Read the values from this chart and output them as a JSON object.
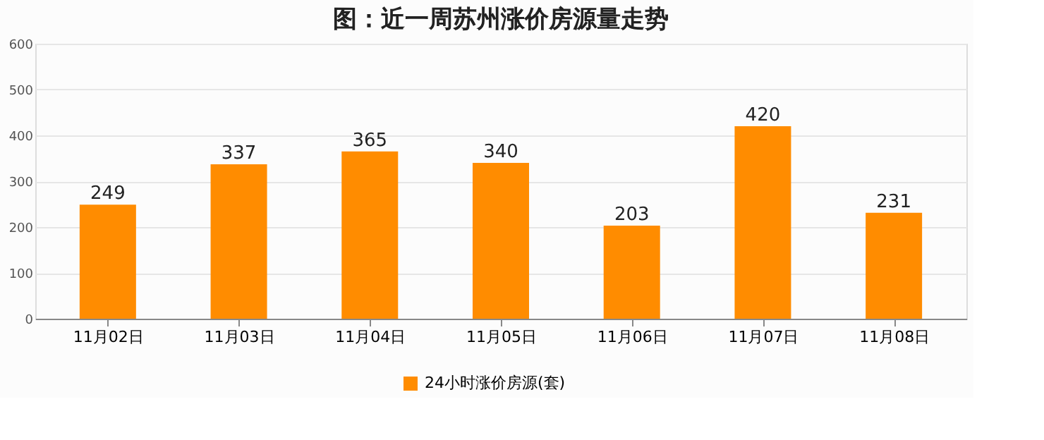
{
  "chart_data": {
    "type": "bar",
    "title": "图：近一周苏州涨价房源量走势",
    "categories": [
      "11月02日",
      "11月03日",
      "11月04日",
      "11月05日",
      "11月06日",
      "11月07日",
      "11月08日"
    ],
    "series": [
      {
        "name": "24小时涨价房源(套)",
        "color": "#ff8c00",
        "values": [
          249,
          337,
          365,
          340,
          203,
          420,
          231
        ]
      }
    ],
    "ylim": [
      0,
      600
    ],
    "yticks": [
      0,
      100,
      200,
      300,
      400,
      500,
      600
    ],
    "grid": "y",
    "legend": "bottom",
    "data_labels": true
  }
}
